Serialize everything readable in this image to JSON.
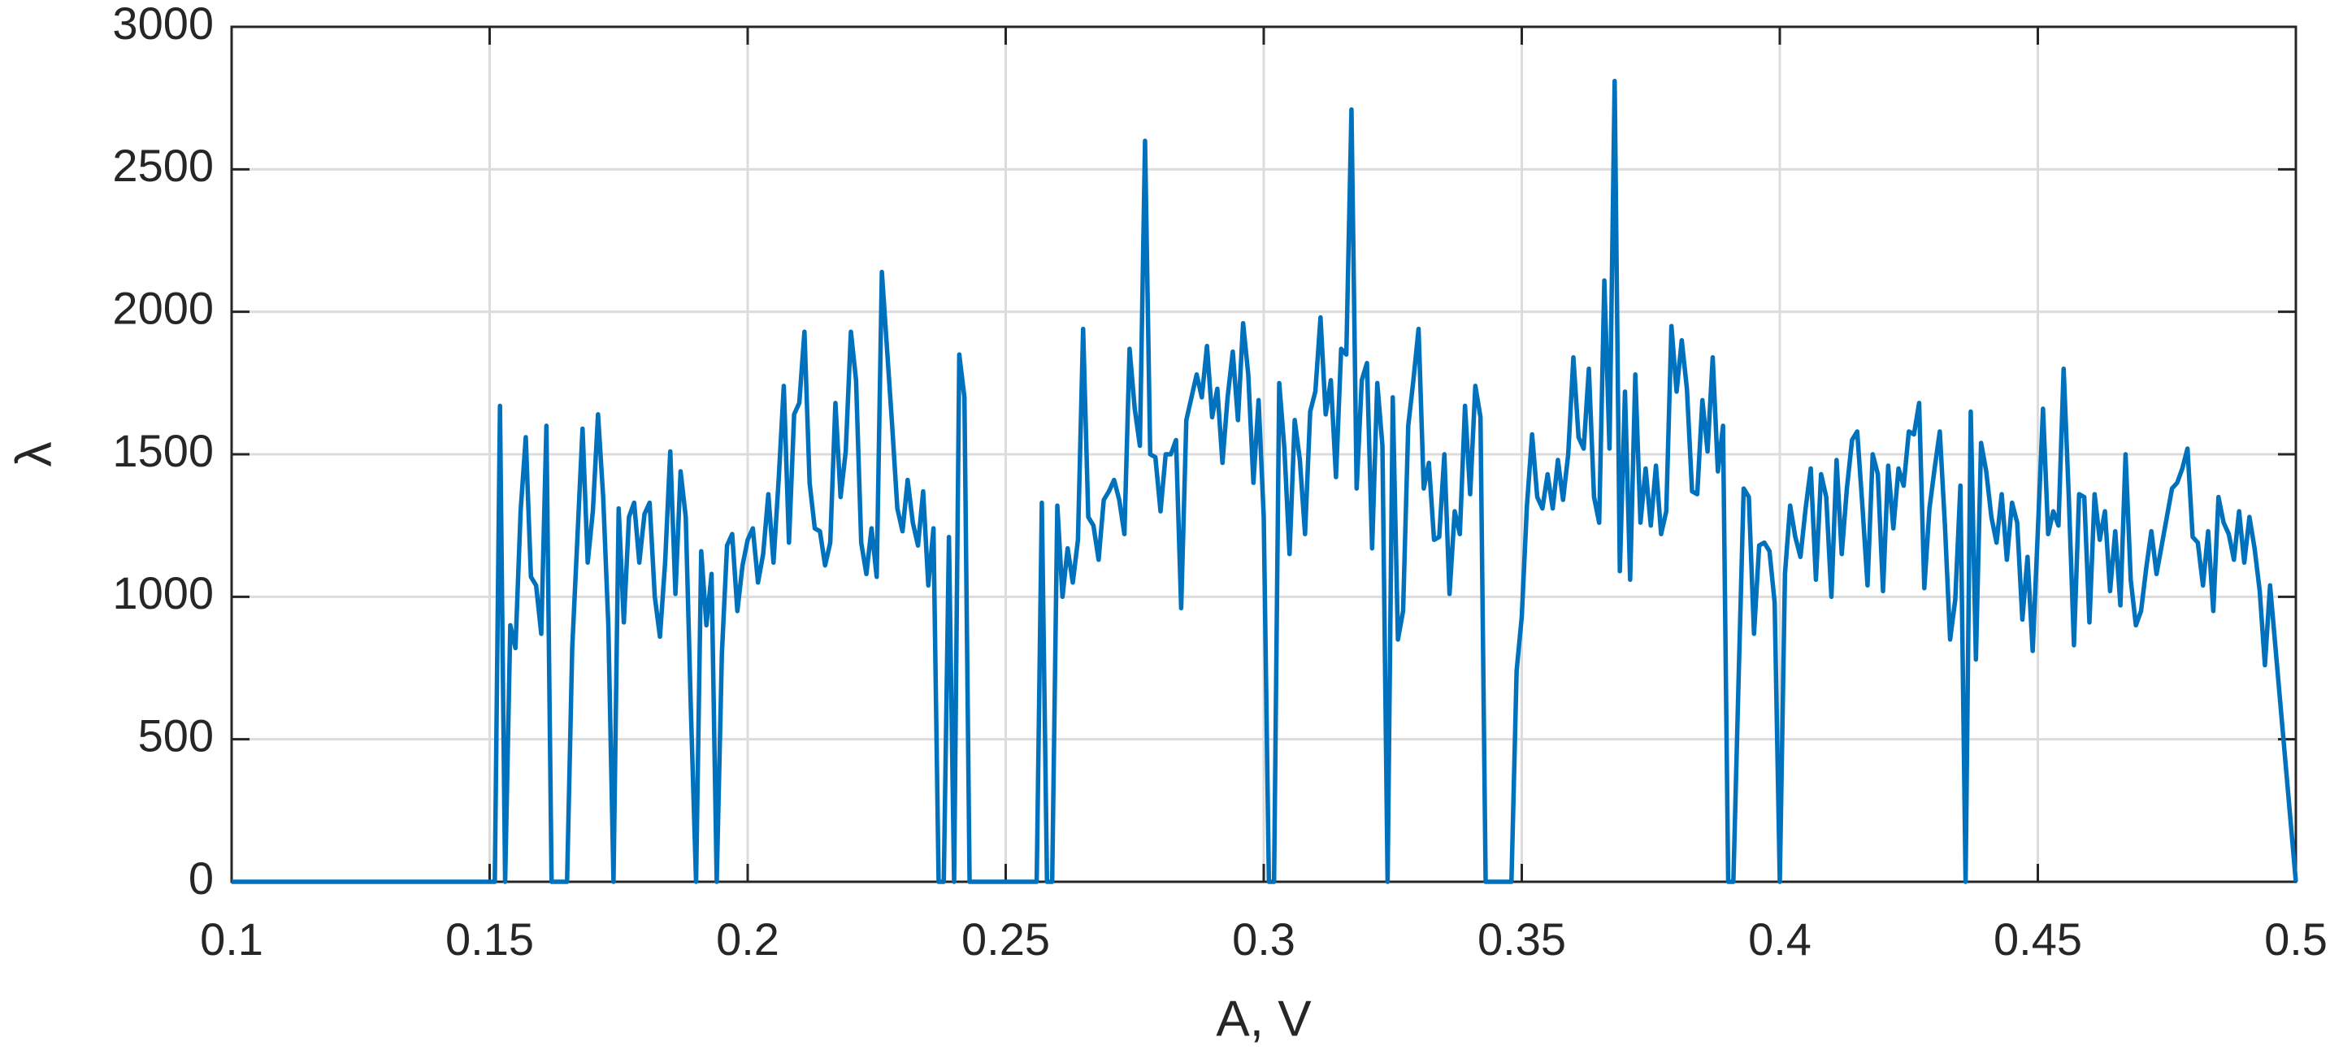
{
  "chart_data": {
    "type": "line",
    "xlabel": "A, V",
    "ylabel": "λ",
    "xlim": [
      0.1,
      0.5
    ],
    "ylim": [
      0,
      3000
    ],
    "xticks": [
      0.1,
      0.15,
      0.2,
      0.25,
      0.3,
      0.35,
      0.4,
      0.45,
      0.5
    ],
    "yticks": [
      0,
      500,
      1000,
      1500,
      2000,
      2500,
      3000
    ],
    "grid": true,
    "x": [
      0.1,
      0.151,
      0.152,
      0.153,
      0.154,
      0.155,
      0.156,
      0.157,
      0.158,
      0.159,
      0.16,
      0.161,
      0.162,
      0.165,
      0.166,
      0.168,
      0.169,
      0.17,
      0.171,
      0.172,
      0.173,
      0.174,
      0.175,
      0.176,
      0.177,
      0.178,
      0.179,
      0.18,
      0.181,
      0.182,
      0.183,
      0.184,
      0.185,
      0.186,
      0.187,
      0.188,
      0.189,
      0.19,
      0.191,
      0.192,
      0.193,
      0.194,
      0.195,
      0.196,
      0.197,
      0.198,
      0.199,
      0.2,
      0.201,
      0.202,
      0.203,
      0.204,
      0.205,
      0.206,
      0.207,
      0.208,
      0.209,
      0.21,
      0.211,
      0.212,
      0.213,
      0.214,
      0.215,
      0.216,
      0.217,
      0.218,
      0.219,
      0.22,
      0.221,
      0.222,
      0.223,
      0.224,
      0.225,
      0.226,
      0.227,
      0.228,
      0.229,
      0.23,
      0.231,
      0.232,
      0.233,
      0.234,
      0.235,
      0.236,
      0.237,
      0.238,
      0.239,
      0.24,
      0.241,
      0.242,
      0.243,
      0.256,
      0.257,
      0.258,
      0.259,
      0.26,
      0.261,
      0.262,
      0.263,
      0.264,
      0.265,
      0.266,
      0.267,
      0.268,
      0.269,
      0.27,
      0.271,
      0.272,
      0.273,
      0.274,
      0.275,
      0.276,
      0.277,
      0.278,
      0.279,
      0.28,
      0.281,
      0.282,
      0.283,
      0.284,
      0.285,
      0.286,
      0.287,
      0.288,
      0.289,
      0.29,
      0.291,
      0.292,
      0.293,
      0.294,
      0.295,
      0.296,
      0.297,
      0.298,
      0.299,
      0.3,
      0.301,
      0.302,
      0.303,
      0.304,
      0.305,
      0.306,
      0.307,
      0.308,
      0.309,
      0.31,
      0.311,
      0.312,
      0.313,
      0.314,
      0.315,
      0.316,
      0.317,
      0.318,
      0.319,
      0.32,
      0.321,
      0.322,
      0.323,
      0.324,
      0.325,
      0.326,
      0.327,
      0.328,
      0.329,
      0.33,
      0.331,
      0.332,
      0.333,
      0.334,
      0.335,
      0.336,
      0.337,
      0.338,
      0.339,
      0.34,
      0.341,
      0.342,
      0.343,
      0.348,
      0.349,
      0.35,
      0.351,
      0.352,
      0.353,
      0.354,
      0.355,
      0.356,
      0.357,
      0.358,
      0.359,
      0.36,
      0.361,
      0.362,
      0.363,
      0.364,
      0.365,
      0.366,
      0.367,
      0.368,
      0.369,
      0.37,
      0.371,
      0.372,
      0.373,
      0.374,
      0.375,
      0.376,
      0.377,
      0.378,
      0.379,
      0.38,
      0.381,
      0.382,
      0.383,
      0.384,
      0.385,
      0.386,
      0.387,
      0.388,
      0.389,
      0.39,
      0.391,
      0.392,
      0.393,
      0.394,
      0.395,
      0.396,
      0.397,
      0.398,
      0.399,
      0.4,
      0.401,
      0.402,
      0.403,
      0.404,
      0.405,
      0.406,
      0.407,
      0.408,
      0.409,
      0.41,
      0.411,
      0.412,
      0.413,
      0.414,
      0.415,
      0.416,
      0.417,
      0.418,
      0.419,
      0.42,
      0.421,
      0.422,
      0.423,
      0.424,
      0.425,
      0.426,
      0.427,
      0.428,
      0.429,
      0.43,
      0.431,
      0.432,
      0.433,
      0.434,
      0.435,
      0.436,
      0.437,
      0.438,
      0.439,
      0.44,
      0.441,
      0.442,
      0.443,
      0.444,
      0.445,
      0.446,
      0.447,
      0.448,
      0.449,
      0.45,
      0.451,
      0.452,
      0.453,
      0.454,
      0.455,
      0.456,
      0.457,
      0.458,
      0.459,
      0.46,
      0.461,
      0.462,
      0.463,
      0.464,
      0.465,
      0.466,
      0.467,
      0.468,
      0.469,
      0.47,
      0.471,
      0.472,
      0.473,
      0.474,
      0.475,
      0.476,
      0.477,
      0.478,
      0.479,
      0.48,
      0.481,
      0.482,
      0.483,
      0.484,
      0.485,
      0.486,
      0.487,
      0.488,
      0.489,
      0.49,
      0.491,
      0.492,
      0.493,
      0.494,
      0.495,
      0.5
    ],
    "series": [
      {
        "color": "#0072bd",
        "values": [
          0,
          0,
          1670,
          0,
          900,
          820,
          1300,
          1560,
          1070,
          1040,
          870,
          1600,
          0,
          0,
          820,
          1590,
          1120,
          1300,
          1640,
          1350,
          900,
          0,
          1310,
          910,
          1280,
          1330,
          1120,
          1290,
          1330,
          1000,
          860,
          1120,
          1510,
          1010,
          1440,
          1280,
          600,
          0,
          1160,
          900,
          1080,
          0,
          800,
          1180,
          1220,
          950,
          1110,
          1200,
          1240,
          1050,
          1150,
          1360,
          1120,
          1410,
          1740,
          1190,
          1640,
          1680,
          1930,
          1400,
          1240,
          1230,
          1110,
          1190,
          1680,
          1350,
          1510,
          1930,
          1760,
          1190,
          1080,
          1240,
          1070,
          2140,
          1870,
          1600,
          1310,
          1230,
          1410,
          1260,
          1180,
          1370,
          1040,
          1240,
          0,
          0,
          1210,
          0,
          1850,
          1700,
          0,
          0,
          1330,
          0,
          0,
          1320,
          1000,
          1170,
          1050,
          1200,
          1940,
          1280,
          1250,
          1130,
          1340,
          1370,
          1410,
          1340,
          1220,
          1870,
          1660,
          1530,
          2600,
          1500,
          1490,
          1300,
          1500,
          1500,
          1550,
          960,
          1620,
          1700,
          1780,
          1700,
          1880,
          1630,
          1730,
          1470,
          1700,
          1860,
          1620,
          1960,
          1780,
          1400,
          1690,
          1280,
          0,
          0,
          1750,
          1520,
          1150,
          1620,
          1480,
          1220,
          1650,
          1720,
          1980,
          1640,
          1760,
          1420,
          1870,
          1850,
          2710,
          1380,
          1760,
          1820,
          1170,
          1750,
          1530,
          0,
          1700,
          850,
          950,
          1600,
          1760,
          1940,
          1380,
          1470,
          1200,
          1210,
          1500,
          1010,
          1300,
          1220,
          1670,
          1360,
          1740,
          1630,
          0,
          0,
          740,
          930,
          1320,
          1570,
          1350,
          1310,
          1430,
          1310,
          1480,
          1340,
          1500,
          1840,
          1560,
          1520,
          1800,
          1350,
          1260,
          2110,
          1520,
          2810,
          1090,
          1720,
          1060,
          1780,
          1260,
          1450,
          1250,
          1460,
          1220,
          1300,
          1950,
          1720,
          1900,
          1730,
          1370,
          1360,
          1690,
          1510,
          1840,
          1440,
          1600,
          0,
          0,
          700,
          1380,
          1350,
          870,
          1180,
          1190,
          1160,
          980,
          0,
          1080,
          1320,
          1210,
          1140,
          1310,
          1450,
          1060,
          1430,
          1350,
          1000,
          1480,
          1150,
          1380,
          1550,
          1580,
          1320,
          1040,
          1500,
          1430,
          1020,
          1460,
          1240,
          1450,
          1390,
          1580,
          1570,
          1680,
          1030,
          1310,
          1450,
          1580,
          1250,
          850,
          990,
          1390,
          0,
          1650,
          780,
          1540,
          1440,
          1280,
          1190,
          1360,
          1130,
          1330,
          1260,
          920,
          1140,
          810,
          1230,
          1660,
          1220,
          1300,
          1250,
          1800,
          1350,
          830,
          1360,
          1350,
          910,
          1360,
          1200,
          1300,
          1020,
          1230,
          970,
          1500,
          1060,
          900,
          950,
          1100,
          1230,
          1080,
          1180,
          1280,
          1380,
          1400,
          1450,
          1520,
          1210,
          1190,
          1040,
          1230,
          950,
          1350,
          1260,
          1220,
          1130,
          1300,
          1120,
          1280,
          1170,
          1020,
          760,
          1040,
          0
        ]
      }
    ]
  }
}
